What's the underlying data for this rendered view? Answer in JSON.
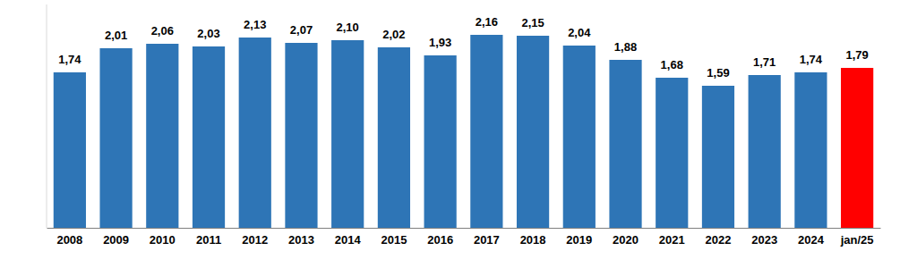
{
  "chart_data": {
    "type": "bar",
    "categories": [
      "2008",
      "2009",
      "2010",
      "2011",
      "2012",
      "2013",
      "2014",
      "2015",
      "2016",
      "2017",
      "2018",
      "2019",
      "2020",
      "2021",
      "2022",
      "2023",
      "2024",
      "jan/25"
    ],
    "values": [
      1.74,
      2.01,
      2.06,
      2.03,
      2.13,
      2.07,
      2.1,
      2.02,
      1.93,
      2.16,
      2.15,
      2.04,
      1.88,
      1.68,
      1.59,
      1.71,
      1.74,
      1.79
    ],
    "value_labels": [
      "1,74",
      "2,01",
      "2,06",
      "2,03",
      "2,13",
      "2,07",
      "2,10",
      "2,02",
      "1,93",
      "2,16",
      "2,15",
      "2,04",
      "1,88",
      "1,68",
      "1,59",
      "1,71",
      "1,74",
      "1,79"
    ],
    "colors": [
      "#2e75b6",
      "#2e75b6",
      "#2e75b6",
      "#2e75b6",
      "#2e75b6",
      "#2e75b6",
      "#2e75b6",
      "#2e75b6",
      "#2e75b6",
      "#2e75b6",
      "#2e75b6",
      "#2e75b6",
      "#2e75b6",
      "#2e75b6",
      "#2e75b6",
      "#2e75b6",
      "#2e75b6",
      "#ff0000"
    ],
    "ylim": [
      0,
      2.5
    ],
    "data_labels": true,
    "tick_labels": "x"
  }
}
